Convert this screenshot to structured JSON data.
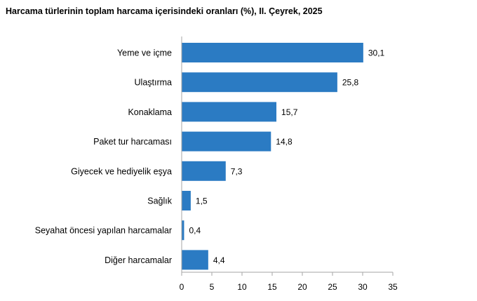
{
  "chart_data": {
    "type": "bar",
    "orientation": "horizontal",
    "title": "Harcama türlerinin toplam harcama içerisindeki oranları (%), II. Çeyrek, 2025",
    "categories": [
      "Yeme ve içme",
      "Ulaştırma",
      "Konaklama",
      "Paket tur harcaması",
      "Giyecek ve hediyelik eşya",
      "Sağlık",
      "Seyahat öncesi yapılan harcamalar",
      "Diğer harcamalar"
    ],
    "values": [
      30.1,
      25.8,
      15.7,
      14.8,
      7.3,
      1.5,
      0.4,
      4.4
    ],
    "value_labels": [
      "30,1",
      "25,8",
      "15,7",
      "14,8",
      "7,3",
      "1,5",
      "0,4",
      "4,4"
    ],
    "xlim": [
      0,
      35
    ],
    "xticks": [
      0,
      5,
      10,
      15,
      20,
      25,
      30,
      35
    ],
    "xlabel": "",
    "ylabel": "",
    "grid": false,
    "legend": "none",
    "bar_color": "#2B7BC3"
  }
}
